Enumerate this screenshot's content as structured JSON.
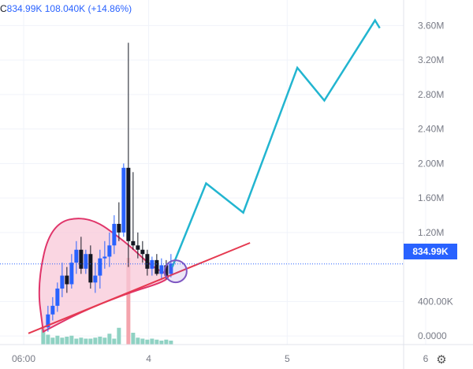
{
  "ohlc": {
    "close_prefix": "C",
    "close": "834.99K",
    "change": "108.040K",
    "change_pct": "(+14.86%)"
  },
  "price_tag": "834.99K",
  "colors": {
    "up": "#2962ff",
    "down": "#131722",
    "projection": "#22b5d0",
    "trendline": "#e53950",
    "cup_fill": "#f8c8d8",
    "cup_stroke": "#e0356a",
    "circle": "#7e57c2",
    "vol_up": "#8fd2c3",
    "vol_down": "#f4a4ad"
  },
  "icons": {
    "settings": "gear-icon"
  },
  "chart_data": {
    "type": "candlestick",
    "y_axis": {
      "range": [
        -0.2,
        3.85
      ],
      "ticks": [
        {
          "value": 0.0,
          "label": "0.0000"
        },
        {
          "value": 0.4,
          "label": "400.00K"
        },
        {
          "value": 1.2,
          "label": "1.20M"
        },
        {
          "value": 1.6,
          "label": "1.60M"
        },
        {
          "value": 2.0,
          "label": "2.00M"
        },
        {
          "value": 2.4,
          "label": "2.40M"
        },
        {
          "value": 2.8,
          "label": "2.80M"
        },
        {
          "value": 3.2,
          "label": "3.20M"
        },
        {
          "value": 3.6,
          "label": "3.60M"
        }
      ]
    },
    "x_axis": {
      "range": [
        0,
        7
      ],
      "ticks": [
        {
          "value": 0.35,
          "label": "06:00"
        },
        {
          "value": 2.2,
          "label": "4"
        },
        {
          "value": 4.25,
          "label": "5"
        },
        {
          "value": 6.3,
          "label": "6"
        }
      ]
    },
    "last_price": 0.835,
    "candles": [
      {
        "x": 0.71,
        "o": 0.1,
        "h": 0.35,
        "l": 0.05,
        "c": 0.25
      },
      {
        "x": 0.78,
        "o": 0.25,
        "h": 0.45,
        "l": 0.18,
        "c": 0.35
      },
      {
        "x": 0.85,
        "o": 0.35,
        "h": 0.62,
        "l": 0.28,
        "c": 0.55
      },
      {
        "x": 0.92,
        "o": 0.55,
        "h": 0.85,
        "l": 0.45,
        "c": 0.7
      },
      {
        "x": 0.99,
        "o": 0.7,
        "h": 0.8,
        "l": 0.5,
        "c": 0.6
      },
      {
        "x": 1.06,
        "o": 0.6,
        "h": 0.95,
        "l": 0.55,
        "c": 0.85
      },
      {
        "x": 1.13,
        "o": 0.85,
        "h": 1.1,
        "l": 0.72,
        "c": 1.0
      },
      {
        "x": 1.2,
        "o": 1.0,
        "h": 1.15,
        "l": 0.72,
        "c": 0.78
      },
      {
        "x": 1.27,
        "o": 0.78,
        "h": 1.0,
        "l": 0.72,
        "c": 0.95
      },
      {
        "x": 1.34,
        "o": 0.95,
        "h": 1.05,
        "l": 0.55,
        "c": 0.62
      },
      {
        "x": 1.41,
        "o": 0.62,
        "h": 0.85,
        "l": 0.5,
        "c": 0.7
      },
      {
        "x": 1.48,
        "o": 0.7,
        "h": 1.0,
        "l": 0.55,
        "c": 0.9
      },
      {
        "x": 1.55,
        "o": 0.9,
        "h": 1.1,
        "l": 0.78,
        "c": 0.92
      },
      {
        "x": 1.62,
        "o": 0.92,
        "h": 1.2,
        "l": 0.8,
        "c": 1.05
      },
      {
        "x": 1.69,
        "o": 1.05,
        "h": 1.4,
        "l": 0.95,
        "c": 1.3
      },
      {
        "x": 1.76,
        "o": 1.3,
        "h": 1.55,
        "l": 1.1,
        "c": 1.2
      },
      {
        "x": 1.83,
        "o": 1.2,
        "h": 2.0,
        "l": 1.15,
        "c": 1.95
      },
      {
        "x": 1.9,
        "o": 1.95,
        "h": 3.4,
        "l": 0.8,
        "c": 1.1
      },
      {
        "x": 1.97,
        "o": 1.1,
        "h": 1.9,
        "l": 1.0,
        "c": 1.05
      },
      {
        "x": 2.04,
        "o": 1.05,
        "h": 1.2,
        "l": 0.9,
        "c": 1.0
      },
      {
        "x": 2.11,
        "o": 1.0,
        "h": 1.1,
        "l": 0.85,
        "c": 0.95
      },
      {
        "x": 2.18,
        "o": 0.95,
        "h": 1.0,
        "l": 0.7,
        "c": 0.78
      },
      {
        "x": 2.25,
        "o": 0.78,
        "h": 0.92,
        "l": 0.7,
        "c": 0.88
      },
      {
        "x": 2.32,
        "o": 0.88,
        "h": 0.95,
        "l": 0.7,
        "c": 0.72
      },
      {
        "x": 2.39,
        "o": 0.72,
        "h": 0.9,
        "l": 0.65,
        "c": 0.82
      },
      {
        "x": 2.46,
        "o": 0.82,
        "h": 0.88,
        "l": 0.66,
        "c": 0.7
      },
      {
        "x": 2.53,
        "o": 0.72,
        "h": 0.95,
        "l": 0.68,
        "c": 0.84
      }
    ],
    "volumes": [
      {
        "x": 0.64,
        "v": 0.9,
        "up": true
      },
      {
        "x": 0.71,
        "v": 0.5,
        "up": true
      },
      {
        "x": 0.78,
        "v": 0.35,
        "up": true
      },
      {
        "x": 0.85,
        "v": 0.45,
        "up": true
      },
      {
        "x": 0.92,
        "v": 0.35,
        "up": true
      },
      {
        "x": 0.99,
        "v": 0.4,
        "up": true
      },
      {
        "x": 1.06,
        "v": 0.45,
        "up": true
      },
      {
        "x": 1.13,
        "v": 0.3,
        "up": true
      },
      {
        "x": 1.2,
        "v": 0.35,
        "up": true
      },
      {
        "x": 1.27,
        "v": 0.3,
        "up": true
      },
      {
        "x": 1.34,
        "v": 0.3,
        "up": true
      },
      {
        "x": 1.41,
        "v": 0.35,
        "up": true
      },
      {
        "x": 1.48,
        "v": 0.4,
        "up": true
      },
      {
        "x": 1.55,
        "v": 0.35,
        "up": true
      },
      {
        "x": 1.62,
        "v": 0.55,
        "up": true
      },
      {
        "x": 1.69,
        "v": 0.3,
        "up": true
      },
      {
        "x": 1.76,
        "v": 0.85,
        "up": true
      },
      {
        "x": 1.9,
        "v": 5.0,
        "up": false
      },
      {
        "x": 1.97,
        "v": 0.6,
        "up": true
      },
      {
        "x": 2.04,
        "v": 0.35,
        "up": true
      },
      {
        "x": 2.11,
        "v": 0.3,
        "up": true
      },
      {
        "x": 2.18,
        "v": 0.25,
        "up": true
      },
      {
        "x": 2.25,
        "v": 0.3,
        "up": true
      },
      {
        "x": 2.32,
        "v": 0.25,
        "up": true
      },
      {
        "x": 2.39,
        "v": 0.2,
        "up": true
      },
      {
        "x": 2.46,
        "v": 0.25,
        "up": true
      },
      {
        "x": 2.53,
        "v": 0.2,
        "up": true
      }
    ],
    "projection_path": [
      {
        "x": 2.55,
        "y": 0.8
      },
      {
        "x": 3.05,
        "y": 1.77
      },
      {
        "x": 3.6,
        "y": 1.43
      },
      {
        "x": 4.4,
        "y": 3.11
      },
      {
        "x": 4.8,
        "y": 2.73
      },
      {
        "x": 5.55,
        "y": 3.66
      },
      {
        "x": 5.62,
        "y": 3.57
      }
    ],
    "trendline": [
      {
        "x": 0.42,
        "y": 0.03
      },
      {
        "x": 3.7,
        "y": 1.08
      }
    ],
    "cup_shape": [
      {
        "x": 0.64,
        "y": 0.05
      },
      {
        "x": 0.55,
        "y": 0.6
      },
      {
        "x": 0.75,
        "y": 1.3
      },
      {
        "x": 1.3,
        "y": 1.4
      },
      {
        "x": 1.85,
        "y": 1.1
      },
      {
        "x": 2.25,
        "y": 0.8
      },
      {
        "x": 2.53,
        "y": 0.7
      },
      {
        "x": 2.4,
        "y": 0.62
      },
      {
        "x": 1.9,
        "y": 0.5
      },
      {
        "x": 1.2,
        "y": 0.28
      },
      {
        "x": 0.64,
        "y": 0.05
      }
    ],
    "highlight_circle": {
      "x": 2.6,
      "y": 0.75
    }
  }
}
